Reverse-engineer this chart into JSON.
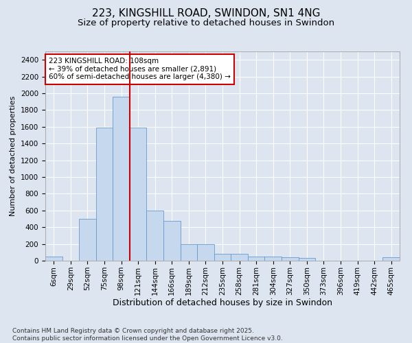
{
  "title1": "223, KINGSHILL ROAD, SWINDON, SN1 4NG",
  "title2": "Size of property relative to detached houses in Swindon",
  "xlabel": "Distribution of detached houses by size in Swindon",
  "ylabel": "Number of detached properties",
  "footer": "Contains HM Land Registry data © Crown copyright and database right 2025.\nContains public sector information licensed under the Open Government Licence v3.0.",
  "bin_labels": [
    "6sqm",
    "29sqm",
    "52sqm",
    "75sqm",
    "98sqm",
    "121sqm",
    "144sqm",
    "166sqm",
    "189sqm",
    "212sqm",
    "235sqm",
    "258sqm",
    "281sqm",
    "304sqm",
    "327sqm",
    "350sqm",
    "373sqm",
    "396sqm",
    "419sqm",
    "442sqm",
    "465sqm"
  ],
  "bar_values": [
    50,
    0,
    500,
    1590,
    1960,
    1590,
    600,
    475,
    200,
    195,
    80,
    80,
    50,
    50,
    40,
    30,
    0,
    0,
    0,
    0,
    40
  ],
  "bar_color": "#c5d8ee",
  "bar_edge_color": "#6699cc",
  "annotation_text": "223 KINGSHILL ROAD: 108sqm\n← 39% of detached houses are smaller (2,891)\n60% of semi-detached houses are larger (4,380) →",
  "vline_x": 4.5,
  "vline_color": "#cc0000",
  "annotation_box_color": "#cc0000",
  "ylim": [
    0,
    2500
  ],
  "yticks": [
    0,
    200,
    400,
    600,
    800,
    1000,
    1200,
    1400,
    1600,
    1800,
    2000,
    2200,
    2400
  ],
  "bg_color": "#dce5f0",
  "plot_bg_color": "#dce5f0",
  "grid_color": "#ffffff",
  "title1_fontsize": 11,
  "title2_fontsize": 9.5,
  "xlabel_fontsize": 9,
  "ylabel_fontsize": 8,
  "tick_fontsize": 7.5,
  "footer_fontsize": 6.5,
  "annot_fontsize": 7.5
}
